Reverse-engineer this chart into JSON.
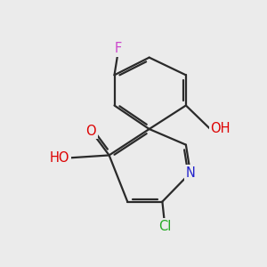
{
  "background_color": "#ebebeb",
  "bond_color": "#2a2a2a",
  "bond_lw": 1.6,
  "dbo": 0.09,
  "atom_bg": "#ebebeb",
  "labels": {
    "F": {
      "color": "#cc44cc",
      "fontsize": 10.5
    },
    "O": {
      "color": "#dd0000",
      "fontsize": 10.5
    },
    "N": {
      "color": "#2222cc",
      "fontsize": 10.5
    },
    "Cl": {
      "color": "#22aa22",
      "fontsize": 10.5
    },
    "H": {
      "color": "#888888",
      "fontsize": 10.5
    }
  }
}
